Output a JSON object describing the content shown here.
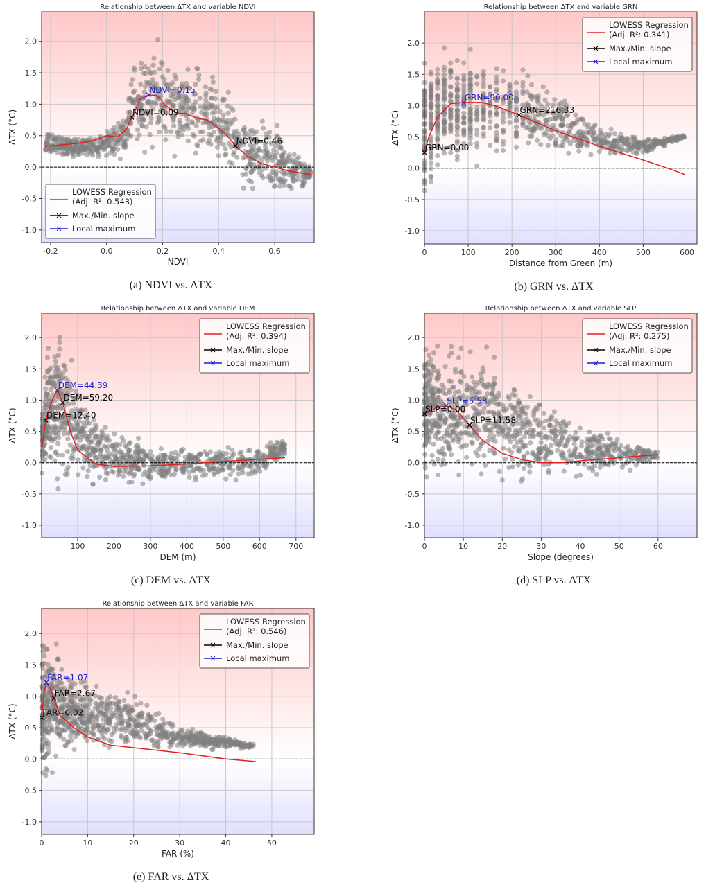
{
  "chart_data": [
    {
      "type": "scatter",
      "title": "Relationship between ΔTX and variable NDVI",
      "caption": "(a)  NDVI  vs.  ΔTX",
      "xlabel": "NDVI",
      "ylabel": "ΔTX (°C)",
      "xlim": [
        -0.232,
        0.741
      ],
      "ylim": [
        -1.2,
        2.47
      ],
      "xticks": [
        "-0.2",
        "0.0",
        "0.2",
        "0.4",
        "0.6"
      ],
      "xtick_values": [
        -0.2,
        0,
        0.2,
        0.4,
        0.6
      ],
      "yticks": [
        "-1.0",
        "-0.5",
        "0.0",
        "0.5",
        "1.0",
        "1.5",
        "2.0"
      ],
      "ytick_values": [
        -1,
        -0.5,
        0,
        0.5,
        1,
        1.5,
        2
      ],
      "grid": true,
      "legend_position": "lower-left",
      "zero_line": true,
      "legend": [
        "LOWESS Regression",
        "(Adj. R²: 0.543)",
        "Max./Min. slope",
        "Local maximum"
      ],
      "lowess": [
        [
          -0.22,
          0.33
        ],
        [
          -0.1,
          0.38
        ],
        [
          -0.05,
          0.42
        ],
        [
          0,
          0.5
        ],
        [
          0.04,
          0.48
        ],
        [
          0.07,
          0.6
        ],
        [
          0.09,
          0.78
        ],
        [
          0.12,
          1.08
        ],
        [
          0.15,
          1.15
        ],
        [
          0.18,
          1.14
        ],
        [
          0.21,
          0.98
        ],
        [
          0.25,
          0.86
        ],
        [
          0.28,
          0.85
        ],
        [
          0.33,
          0.77
        ],
        [
          0.36,
          0.75
        ],
        [
          0.4,
          0.62
        ],
        [
          0.43,
          0.5
        ],
        [
          0.46,
          0.34
        ],
        [
          0.5,
          0.18
        ],
        [
          0.55,
          0.06
        ],
        [
          0.6,
          0.0
        ],
        [
          0.65,
          -0.06
        ],
        [
          0.73,
          -0.12
        ]
      ],
      "slope_points": [
        {
          "x": 0.09,
          "y": 0.79,
          "label": "NDVI=0.09"
        },
        {
          "x": 0.46,
          "y": 0.34,
          "label": "NDVI=0.46"
        }
      ],
      "local_max": [
        {
          "x": 0.15,
          "y": 1.15,
          "label": "NDVI=0.15"
        }
      ],
      "scatter_envelope": [
        [
          -0.22,
          0.1,
          0.6
        ],
        [
          -0.05,
          0.1,
          0.55
        ],
        [
          0.05,
          0.0,
          0.9
        ],
        [
          0.1,
          -0.05,
          2.0
        ],
        [
          0.15,
          0.0,
          2.3
        ],
        [
          0.2,
          0.0,
          2.2
        ],
        [
          0.3,
          -0.05,
          1.9
        ],
        [
          0.4,
          -0.1,
          1.6
        ],
        [
          0.45,
          -0.3,
          1.3
        ],
        [
          0.5,
          -0.6,
          1.0
        ],
        [
          0.6,
          -0.6,
          0.8
        ],
        [
          0.7,
          -0.5,
          0.3
        ],
        [
          0.73,
          -0.2,
          0.0
        ]
      ]
    },
    {
      "type": "scatter",
      "title": "Relationship between ΔTX and variable GRN",
      "caption": "(b)  GRN  vs.  ΔTX",
      "xlabel": "Distance from Green (m)",
      "ylabel": "ΔTX (°C)",
      "xlim": [
        0,
        623
      ],
      "ylim": [
        -1.21,
        2.5
      ],
      "xticks": [
        "0",
        "100",
        "200",
        "300",
        "400",
        "500",
        "600"
      ],
      "xtick_values": [
        0,
        100,
        200,
        300,
        400,
        500,
        600
      ],
      "yticks": [
        "-1.0",
        "-0.5",
        "0.0",
        "0.5",
        "1.0",
        "1.5",
        "2.0"
      ],
      "ytick_values": [
        -1,
        -0.5,
        0,
        0.5,
        1,
        1.5,
        2
      ],
      "grid": true,
      "legend_position": "top-right",
      "zero_line": true,
      "legend": [
        "LOWESS Regression",
        "(Adj. R²: 0.341)",
        "Max./Min. slope",
        "Local maximum"
      ],
      "lowess": [
        [
          0,
          0.25
        ],
        [
          10,
          0.5
        ],
        [
          30,
          0.82
        ],
        [
          60,
          1.03
        ],
        [
          90,
          1.05
        ],
        [
          130,
          1.05
        ],
        [
          160,
          1.0
        ],
        [
          216,
          0.85
        ],
        [
          300,
          0.6
        ],
        [
          400,
          0.35
        ],
        [
          500,
          0.13
        ],
        [
          560,
          -0.01
        ],
        [
          595,
          -0.1
        ]
      ],
      "slope_points": [
        {
          "x": 0,
          "y": 0.25,
          "label": "GRN=0.00"
        },
        {
          "x": 216.33,
          "y": 0.85,
          "label": "GRN=216.33"
        }
      ],
      "local_max": [
        {
          "x": 90,
          "y": 1.05,
          "label": "GRN=90.00"
        }
      ],
      "scatter_envelope": [
        [
          0,
          -0.9,
          2.1
        ],
        [
          30,
          -0.35,
          2.2
        ],
        [
          100,
          -0.1,
          2.2
        ],
        [
          200,
          0.0,
          1.9
        ],
        [
          300,
          0.1,
          1.4
        ],
        [
          400,
          0.1,
          0.8
        ],
        [
          500,
          0.2,
          0.5
        ],
        [
          595,
          0.45,
          0.55
        ]
      ]
    },
    {
      "type": "scatter",
      "title": "Relationship between ΔTX and variable DEM",
      "caption": "(c)  DEM  vs.  ΔTX",
      "xlabel": "DEM (m)",
      "ylabel": "ΔTX (°C)",
      "xlim": [
        1,
        750
      ],
      "ylim": [
        -1.2,
        2.39
      ],
      "xticks": [
        "100",
        "200",
        "300",
        "400",
        "500",
        "600",
        "700"
      ],
      "xtick_values": [
        100,
        200,
        300,
        400,
        500,
        600,
        700
      ],
      "yticks": [
        "-1.0",
        "-0.5",
        "0.0",
        "0.5",
        "1.0",
        "1.5",
        "2.0"
      ],
      "ytick_values": [
        -1,
        -0.5,
        0,
        0.5,
        1,
        1.5,
        2
      ],
      "grid": true,
      "legend_position": "top-right",
      "zero_line": true,
      "legend": [
        "LOWESS Regression",
        "(Adj. R²: 0.394)",
        "Max./Min. slope",
        "Local maximum"
      ],
      "lowess": [
        [
          2,
          0.25
        ],
        [
          12.4,
          0.68
        ],
        [
          30,
          1.0
        ],
        [
          44.39,
          1.16
        ],
        [
          59.2,
          0.96
        ],
        [
          80,
          0.5
        ],
        [
          100,
          0.2
        ],
        [
          150,
          -0.02
        ],
        [
          200,
          -0.06
        ],
        [
          300,
          -0.05
        ],
        [
          400,
          -0.02
        ],
        [
          500,
          0.02
        ],
        [
          670,
          0.08
        ]
      ],
      "slope_points": [
        {
          "x": 12.4,
          "y": 0.68,
          "label": "DEM=12.40"
        },
        {
          "x": 59.2,
          "y": 0.96,
          "label": "DEM=59.20"
        }
      ],
      "local_max": [
        {
          "x": 44.39,
          "y": 1.16,
          "label": "DEM=44.39"
        }
      ],
      "scatter_envelope": [
        [
          2,
          -0.3,
          1.0
        ],
        [
          20,
          -0.4,
          2.2
        ],
        [
          50,
          -0.5,
          2.3
        ],
        [
          80,
          -0.6,
          2.1
        ],
        [
          120,
          -0.6,
          1.3
        ],
        [
          200,
          -0.5,
          0.6
        ],
        [
          400,
          -0.4,
          0.35
        ],
        [
          600,
          -0.3,
          0.35
        ],
        [
          670,
          0.1,
          0.4
        ]
      ]
    },
    {
      "type": "scatter",
      "title": "Relationship between ΔTX and variable SLP",
      "caption": "(d)  SLP  vs.  ΔTX",
      "xlabel": "Slope (degrees)",
      "ylabel": "ΔTX (°C)",
      "xlim": [
        0,
        70
      ],
      "ylim": [
        -1.2,
        2.39
      ],
      "xticks": [
        "0",
        "10",
        "20",
        "30",
        "40",
        "50",
        "60"
      ],
      "xtick_values": [
        0,
        10,
        20,
        30,
        40,
        50,
        60
      ],
      "yticks": [
        "-1.0",
        "-0.5",
        "0.0",
        "0.5",
        "1.0",
        "1.5",
        "2.0"
      ],
      "ytick_values": [
        -1,
        -0.5,
        0,
        0.5,
        1,
        1.5,
        2
      ],
      "grid": true,
      "legend_position": "top-right",
      "zero_line": true,
      "legend": [
        "LOWESS Regression",
        "(Adj. R²: 0.275)",
        "Max./Min. slope",
        "Local maximum"
      ],
      "lowess": [
        [
          0,
          0.78
        ],
        [
          3,
          0.88
        ],
        [
          5.58,
          0.91
        ],
        [
          8,
          0.85
        ],
        [
          11.58,
          0.6
        ],
        [
          15,
          0.35
        ],
        [
          20,
          0.15
        ],
        [
          25,
          0.05
        ],
        [
          30,
          0.0
        ],
        [
          35,
          0.0
        ],
        [
          40,
          0.03
        ],
        [
          50,
          0.08
        ],
        [
          60,
          0.13
        ]
      ],
      "slope_points": [
        {
          "x": 0,
          "y": 0.78,
          "label": "SLP=0.00"
        },
        {
          "x": 11.58,
          "y": 0.6,
          "label": "SLP=11.58"
        }
      ],
      "local_max": [
        {
          "x": 5.58,
          "y": 0.91,
          "label": "SLP=5.58"
        }
      ],
      "scatter_envelope": [
        [
          0,
          -0.5,
          2.3
        ],
        [
          10,
          -0.6,
          2.3
        ],
        [
          20,
          -0.6,
          2.0
        ],
        [
          30,
          -0.5,
          1.3
        ],
        [
          40,
          -0.4,
          0.8
        ],
        [
          50,
          -0.2,
          0.5
        ],
        [
          60,
          0.0,
          0.2
        ]
      ]
    },
    {
      "type": "scatter",
      "title": "Relationship between ΔTX and variable FAR",
      "caption": "(e)  FAR  vs.  ΔTX",
      "xlabel": "FAR (%)",
      "ylabel": "ΔTX (°C)",
      "xlim": [
        0,
        59.2
      ],
      "ylim": [
        -1.2,
        2.4
      ],
      "xticks": [
        "0",
        "10",
        "20",
        "30",
        "40",
        "50"
      ],
      "xtick_values": [
        0,
        10,
        20,
        30,
        40,
        50
      ],
      "yticks": [
        "-1.0",
        "-0.5",
        "0.0",
        "0.5",
        "1.0",
        "1.5",
        "2.0"
      ],
      "ytick_values": [
        -1,
        -0.5,
        0,
        0.5,
        1,
        1.5,
        2
      ],
      "grid": true,
      "legend_position": "top-right",
      "zero_line": true,
      "legend": [
        "LOWESS Regression",
        "(Adj. R²: 0.546)",
        "Max./Min. slope",
        "Local maximum"
      ],
      "lowess": [
        [
          0,
          0.6
        ],
        [
          0.02,
          0.66
        ],
        [
          0.5,
          1.05
        ],
        [
          1.07,
          1.22
        ],
        [
          2,
          1.1
        ],
        [
          2.67,
          0.97
        ],
        [
          4,
          0.7
        ],
        [
          7,
          0.5
        ],
        [
          10,
          0.35
        ],
        [
          15,
          0.22
        ],
        [
          20,
          0.18
        ],
        [
          30,
          0.1
        ],
        [
          40,
          0.0
        ],
        [
          46.5,
          -0.04
        ]
      ],
      "slope_points": [
        {
          "x": 0.02,
          "y": 0.66,
          "label": "FAR=0.02"
        },
        {
          "x": 2.67,
          "y": 0.97,
          "label": "FAR=2.67"
        }
      ],
      "local_max": [
        {
          "x": 1.07,
          "y": 1.22,
          "label": "FAR=1.07"
        }
      ],
      "scatter_envelope": [
        [
          0,
          -0.9,
          2.2
        ],
        [
          2,
          -0.5,
          2.3
        ],
        [
          5,
          -0.1,
          1.7
        ],
        [
          10,
          0.0,
          1.4
        ],
        [
          20,
          0.0,
          1.2
        ],
        [
          30,
          0.1,
          0.6
        ],
        [
          46,
          0.15,
          0.25
        ]
      ]
    }
  ],
  "colors": {
    "lowess": "#e02020",
    "slope_marker": "#000000",
    "local_max": "#2020cc",
    "points": "#808080",
    "warm_bg": "#ffc8c8",
    "cool_bg": "#e0e0ff"
  }
}
